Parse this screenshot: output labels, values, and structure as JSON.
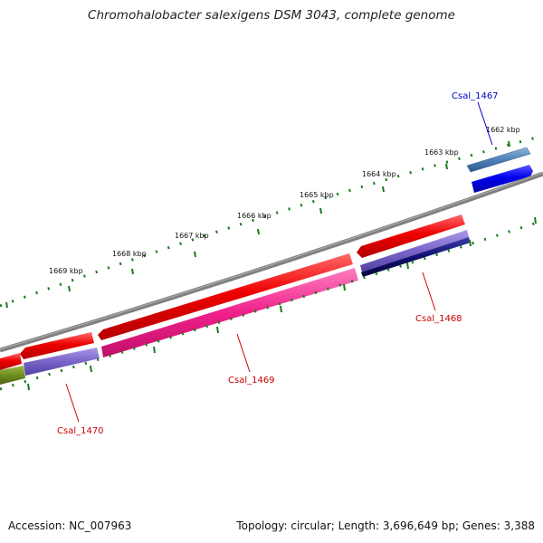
{
  "title": "Chromohalobacter salexigens DSM 3043, complete genome",
  "footer": {
    "accession": "Accession: NC_007963",
    "summary": "Topology: circular; Length: 3,696,649 bp; Genes: 3,388"
  },
  "ticks": [
    {
      "label": "1662 kbp"
    },
    {
      "label": "1663 kbp"
    },
    {
      "label": "1664 kbp"
    },
    {
      "label": "1665 kbp"
    },
    {
      "label": "1666 kbp"
    },
    {
      "label": "1667 kbp"
    },
    {
      "label": "1668 kbp"
    },
    {
      "label": "1669 kbp"
    }
  ],
  "genes": [
    {
      "label": "Csal_1467",
      "color": "#0000cc"
    },
    {
      "label": "Csal_1468",
      "color": "#cc0000"
    },
    {
      "label": "Csal_1469",
      "color": "#cc0000"
    },
    {
      "label": "Csal_1470",
      "color": "#cc0000"
    }
  ],
  "colors": {
    "backbone": "#808080",
    "tick": "#1a7a1a",
    "cds_forward": "#ee0000",
    "cds_blue": "#0000ee",
    "steelblue": "#4f80b8",
    "pink": "#f0208a",
    "lavender": "#7a64c8",
    "navy": "#101070",
    "olive": "#6f8f1f"
  }
}
